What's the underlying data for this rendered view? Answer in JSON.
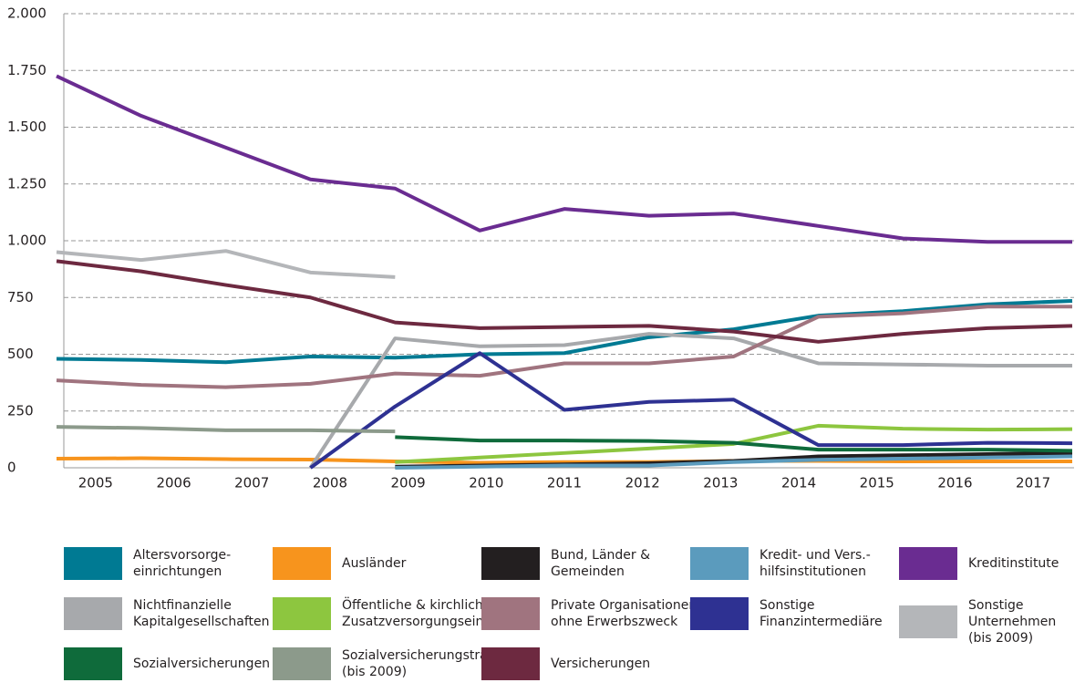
{
  "chart_data": {
    "type": "line",
    "categories": [
      "2005",
      "2006",
      "2007",
      "2008",
      "2009",
      "2010",
      "2011",
      "2012",
      "2013",
      "2014",
      "2015",
      "2016",
      "2017"
    ],
    "ylim": [
      0,
      2000
    ],
    "yticks": [
      0,
      250,
      500,
      750,
      {
        "value": 1000,
        "label": "1.000"
      },
      {
        "value": 1250,
        "label": "1.250"
      },
      {
        "value": 1500,
        "label": "1.500"
      },
      {
        "value": 1750,
        "label": "1.750"
      },
      {
        "value": 2000,
        "label": "2.000"
      }
    ],
    "grid": true,
    "series": [
      {
        "name": "Altersvorsorge-\neinrichtungen",
        "color": "#007a93",
        "values": [
          480,
          475,
          465,
          490,
          485,
          500,
          505,
          575,
          610,
          670,
          690,
          720,
          735
        ]
      },
      {
        "name": "Ausländer",
        "color": "#f7941d",
        "values": [
          40,
          42,
          38,
          36,
          28,
          22,
          25,
          25,
          30,
          30,
          28,
          28,
          28
        ]
      },
      {
        "name": "Bund, Länder &\nGemeinden",
        "color": "#231f20",
        "values": [
          null,
          null,
          null,
          null,
          5,
          10,
          15,
          20,
          30,
          50,
          55,
          60,
          65
        ]
      },
      {
        "name": "Kredit- und Vers.-\nhilfsinstitutionen",
        "color": "#5b9bbd",
        "values": [
          null,
          null,
          null,
          null,
          0,
          5,
          10,
          10,
          25,
          35,
          40,
          45,
          50
        ]
      },
      {
        "name": "Kreditinstitute",
        "color": "#6a2c91",
        "values": [
          1725,
          1550,
          1410,
          1270,
          1230,
          1045,
          1140,
          1110,
          1120,
          1065,
          1010,
          995,
          995
        ]
      },
      {
        "name": "Nichtfinanzielle\nKapitalgesellschaften",
        "color": "#a7a9ac",
        "values": [
          null,
          null,
          null,
          0,
          570,
          535,
          540,
          590,
          570,
          460,
          455,
          450,
          450
        ]
      },
      {
        "name": "Öffentliche & kirchliche\nZusatzversorgungseinr.",
        "color": "#8dc63f",
        "values": [
          null,
          null,
          null,
          null,
          25,
          45,
          65,
          85,
          105,
          185,
          172,
          168,
          170
        ]
      },
      {
        "name": "Private Organisationen\nohne Erwerbszweck",
        "color": "#a0747f",
        "values": [
          385,
          365,
          355,
          370,
          415,
          405,
          460,
          460,
          490,
          665,
          680,
          710,
          710
        ]
      },
      {
        "name": "Sonstige\nFinanzintermediäre",
        "color": "#2e3192",
        "values": [
          null,
          null,
          null,
          0,
          270,
          505,
          255,
          290,
          300,
          100,
          100,
          110,
          108
        ]
      },
      {
        "name": "Sonstige Unternehmen\n(bis 2009)",
        "color": "#b4b6b9",
        "values": [
          950,
          915,
          955,
          860,
          840,
          null,
          null,
          null,
          null,
          null,
          null,
          null,
          null
        ]
      },
      {
        "name": "Sozialversicherungen",
        "color": "#0f6b3b",
        "values": [
          null,
          null,
          null,
          null,
          135,
          120,
          120,
          118,
          110,
          80,
          80,
          80,
          75
        ]
      },
      {
        "name": "Sozialversicherungsträger\n(bis 2009)",
        "color": "#8c9a8b",
        "values": [
          180,
          175,
          165,
          165,
          160,
          null,
          null,
          null,
          null,
          null,
          null,
          null,
          null
        ]
      },
      {
        "name": "Versicherungen",
        "color": "#6d2940",
        "values": [
          910,
          865,
          805,
          750,
          640,
          615,
          620,
          625,
          600,
          555,
          590,
          615,
          625
        ]
      }
    ]
  }
}
